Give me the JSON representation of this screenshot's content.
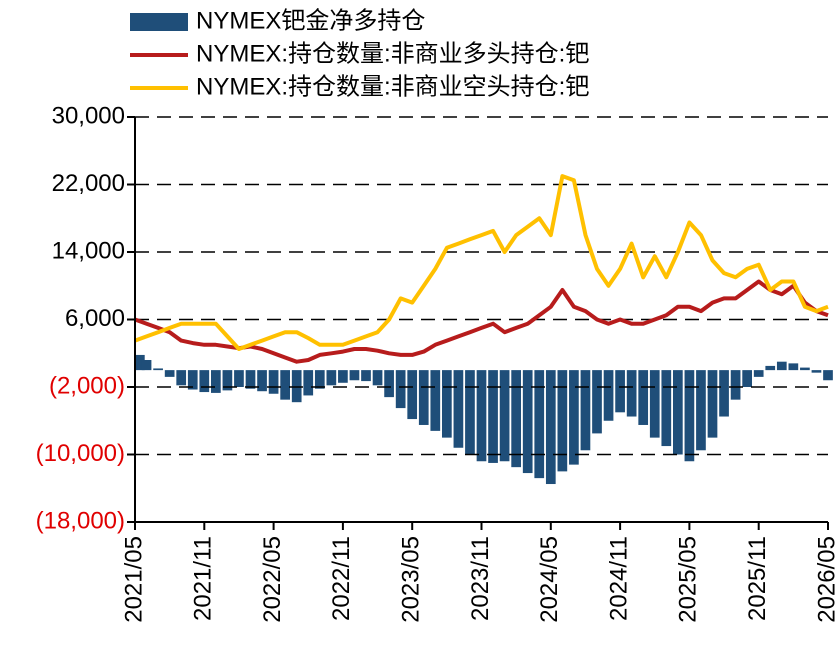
{
  "chart_data": {
    "type": "bar+line",
    "x": [
      "2021/05",
      "2021/06",
      "2021/07",
      "2021/08",
      "2021/09",
      "2021/10",
      "2021/11",
      "2021/12",
      "2022/01",
      "2022/02",
      "2022/03",
      "2022/04",
      "2022/05",
      "2022/06",
      "2022/07",
      "2022/08",
      "2022/09",
      "2022/10",
      "2022/11",
      "2022/12",
      "2023/01",
      "2023/02",
      "2023/03",
      "2023/04",
      "2023/05",
      "2023/06",
      "2023/07",
      "2023/08",
      "2023/09",
      "2023/10",
      "2023/11",
      "2023/12",
      "2024/01",
      "2024/02",
      "2024/03",
      "2024/04",
      "2024/05",
      "2024/06",
      "2024/07",
      "2024/08",
      "2024/09",
      "2024/10",
      "2024/11",
      "2024/12",
      "2025/01",
      "2025/02",
      "2025/03",
      "2025/04",
      "2025/05",
      "2025/06",
      "2025/07",
      "2025/08",
      "2025/09",
      "2025/10",
      "2025/11",
      "2025/12",
      "2026/01",
      "2026/02",
      "2026/03",
      "2026/04",
      "2026/05"
    ],
    "xticks": [
      "2021/05",
      "2021/11",
      "2022/05",
      "2022/11",
      "2023/05",
      "2023/11",
      "2024/05",
      "2024/11",
      "2025/05",
      "2025/11",
      "2026/05"
    ],
    "series": [
      {
        "name": "NYMEX钯金净多持仓",
        "kind": "bar",
        "color": "#1f4e79",
        "values": [
          1800,
          1200,
          200,
          -800,
          -1800,
          -2300,
          -2600,
          -2700,
          -2400,
          -2000,
          -2200,
          -2500,
          -2800,
          -3500,
          -3800,
          -3000,
          -2200,
          -1800,
          -1500,
          -1200,
          -1300,
          -1800,
          -3200,
          -4500,
          -5800,
          -6500,
          -7200,
          -8000,
          -9200,
          -10000,
          -10800,
          -11000,
          -10800,
          -11500,
          -12200,
          -12800,
          -13500,
          -12000,
          -11200,
          -9500,
          -7500,
          -6000,
          -5000,
          -5500,
          -6500,
          -8000,
          -9000,
          -10000,
          -10800,
          -9500,
          -8000,
          -5500,
          -3500,
          -2000,
          -800,
          500,
          1000,
          800,
          300,
          -300,
          -1200
        ]
      },
      {
        "name": "NYMEX:持仓数量:非商业多头持仓:钯",
        "kind": "line",
        "color": "#b71c1c",
        "values": [
          6000,
          5500,
          5000,
          4500,
          3500,
          3200,
          3000,
          3000,
          2800,
          2600,
          2800,
          2500,
          2000,
          1500,
          1000,
          1200,
          1800,
          2000,
          2200,
          2500,
          2500,
          2300,
          2000,
          1800,
          1800,
          2200,
          3000,
          3500,
          4000,
          4500,
          5000,
          5500,
          4500,
          5000,
          5500,
          6500,
          7500,
          9500,
          7500,
          7000,
          6000,
          5500,
          6000,
          5500,
          5500,
          6000,
          6500,
          7500,
          7500,
          7000,
          8000,
          8500,
          8500,
          9500,
          10500,
          9500,
          9000,
          10000,
          8000,
          7000,
          6500
        ]
      },
      {
        "name": "NYMEX:持仓数量:非商业空头持仓:钯",
        "kind": "line",
        "color": "#ffc000",
        "values": [
          3500,
          4000,
          4500,
          5000,
          5500,
          5500,
          5500,
          5500,
          4000,
          2500,
          3000,
          3500,
          4000,
          4500,
          4500,
          3800,
          3000,
          3000,
          3000,
          3500,
          4000,
          4500,
          6000,
          8500,
          8000,
          10000,
          12000,
          14500,
          15000,
          15500,
          16000,
          16500,
          14000,
          16000,
          17000,
          18000,
          16000,
          23000,
          22500,
          16000,
          12000,
          10000,
          12000,
          15000,
          11000,
          13500,
          11000,
          14000,
          17500,
          16000,
          13000,
          11500,
          11000,
          12000,
          12500,
          9500,
          10500,
          10500,
          7500,
          7000,
          7500
        ]
      }
    ],
    "ylim": [
      -18000,
      30000
    ],
    "yticks": [
      {
        "value": 30000,
        "label": "30,000"
      },
      {
        "value": 22000,
        "label": "22,000"
      },
      {
        "value": 14000,
        "label": "14,000"
      },
      {
        "value": 6000,
        "label": "6,000"
      },
      {
        "value": -2000,
        "label": "(2,000)"
      },
      {
        "value": -10000,
        "label": "(10,000)"
      },
      {
        "value": -18000,
        "label": "(18,000)"
      }
    ],
    "negative_tick_color": "#e00000",
    "grid": true
  }
}
